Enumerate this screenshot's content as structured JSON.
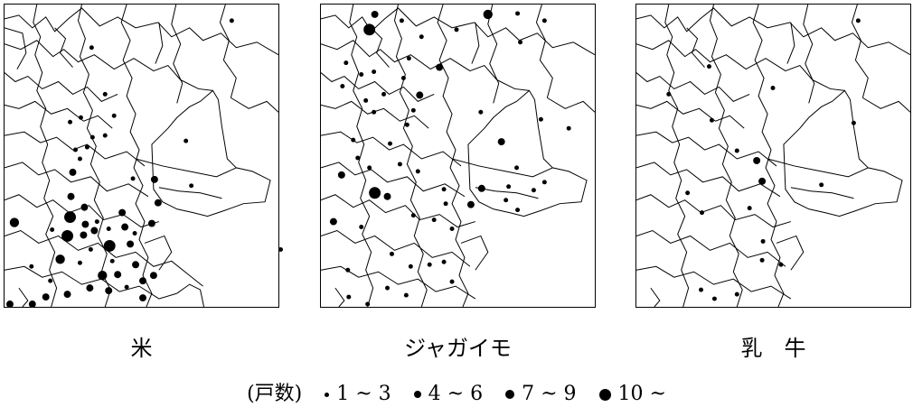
{
  "maps": [
    {
      "label": "米",
      "dots": [
        [
          257,
          22,
          1
        ],
        [
          101,
          52,
          1
        ],
        [
          116,
          104,
          1
        ],
        [
          126,
          128,
          1
        ],
        [
          89,
          130,
          1
        ],
        [
          77,
          135,
          1
        ],
        [
          102,
          152,
          1
        ],
        [
          116,
          150,
          1
        ],
        [
          96,
          163,
          1
        ],
        [
          83,
          166,
          1
        ],
        [
          88,
          176,
          1
        ],
        [
          80,
          191,
          2
        ],
        [
          147,
          198,
          1
        ],
        [
          171,
          199,
          2
        ],
        [
          212,
          206,
          1
        ],
        [
          206,
          156,
          1
        ],
        [
          78,
          218,
          2
        ],
        [
          93,
          230,
          2
        ],
        [
          175,
          225,
          2
        ],
        [
          77,
          241,
          4
        ],
        [
          94,
          249,
          2
        ],
        [
          107,
          246,
          1
        ],
        [
          135,
          236,
          2
        ],
        [
          15,
          247,
          3
        ],
        [
          57,
          255,
          1
        ],
        [
          74,
          262,
          4
        ],
        [
          92,
          261,
          2
        ],
        [
          104,
          256,
          2
        ],
        [
          120,
          254,
          1
        ],
        [
          138,
          252,
          2
        ],
        [
          168,
          248,
          2
        ],
        [
          149,
          259,
          1
        ],
        [
          121,
          273,
          4
        ],
        [
          144,
          271,
          2
        ],
        [
          100,
          277,
          1
        ],
        [
          66,
          288,
          3
        ],
        [
          34,
          296,
          1
        ],
        [
          88,
          292,
          1
        ],
        [
          124,
          290,
          1
        ],
        [
          150,
          294,
          2
        ],
        [
          113,
          306,
          3
        ],
        [
          130,
          305,
          2
        ],
        [
          170,
          306,
          2
        ],
        [
          158,
          312,
          2
        ],
        [
          55,
          312,
          1
        ],
        [
          74,
          327,
          2
        ],
        [
          99,
          320,
          2
        ],
        [
          120,
          323,
          2
        ],
        [
          140,
          319,
          1
        ],
        [
          50,
          330,
          2
        ],
        [
          158,
          331,
          2
        ],
        [
          10,
          338,
          2
        ],
        [
          35,
          338,
          2
        ]
      ]
    },
    {
      "label": "ジャガイモ",
      "dots": [
        [
          408,
          32,
          4
        ],
        [
          414,
          15,
          2
        ],
        [
          540,
          15,
          3
        ],
        [
          573,
          14,
          1
        ],
        [
          603,
          22,
          1
        ],
        [
          444,
          22,
          1
        ],
        [
          466,
          40,
          1
        ],
        [
          576,
          46,
          1
        ],
        [
          486,
          74,
          2
        ],
        [
          505,
          32,
          1
        ],
        [
          452,
          64,
          1
        ],
        [
          382,
          69,
          1
        ],
        [
          399,
          82,
          1
        ],
        [
          413,
          79,
          1
        ],
        [
          446,
          86,
          1
        ],
        [
          404,
          111,
          1
        ],
        [
          424,
          104,
          1
        ],
        [
          464,
          105,
          2
        ],
        [
          457,
          122,
          1
        ],
        [
          378,
          95,
          1
        ],
        [
          413,
          124,
          1
        ],
        [
          450,
          138,
          1
        ],
        [
          532,
          124,
          1
        ],
        [
          599,
          132,
          1
        ],
        [
          630,
          142,
          1
        ],
        [
          555,
          157,
          2
        ],
        [
          390,
          155,
          1
        ],
        [
          431,
          159,
          1
        ],
        [
          395,
          175,
          1
        ],
        [
          442,
          182,
          1
        ],
        [
          377,
          194,
          2
        ],
        [
          462,
          190,
          1
        ],
        [
          408,
          186,
          1
        ],
        [
          572,
          186,
          1
        ],
        [
          414,
          214,
          4
        ],
        [
          428,
          218,
          2
        ],
        [
          491,
          210,
          1
        ],
        [
          533,
          209,
          2
        ],
        [
          603,
          202,
          1
        ],
        [
          591,
          211,
          1
        ],
        [
          563,
          207,
          1
        ],
        [
          521,
          227,
          2
        ],
        [
          457,
          239,
          1
        ],
        [
          493,
          226,
          1
        ],
        [
          560,
          222,
          1
        ],
        [
          573,
          233,
          1
        ],
        [
          368,
          246,
          2
        ],
        [
          480,
          244,
          1
        ],
        [
          500,
          254,
          1
        ],
        [
          399,
          252,
          1
        ],
        [
          384,
          300,
          1
        ],
        [
          433,
          282,
          1
        ],
        [
          454,
          296,
          1
        ],
        [
          475,
          294,
          1
        ],
        [
          491,
          291,
          1
        ],
        [
          500,
          313,
          1
        ],
        [
          428,
          320,
          1
        ],
        [
          449,
          328,
          1
        ],
        [
          385,
          330,
          1
        ],
        [
          406,
          338,
          1
        ]
      ]
    },
    {
      "label": "乳　牛",
      "dots": [
        [
          950,
          22,
          1
        ],
        [
          784,
          73,
          1
        ],
        [
          855,
          97,
          1
        ],
        [
          739,
          104,
          1
        ],
        [
          945,
          136,
          1
        ],
        [
          787,
          133,
          1
        ],
        [
          815,
          167,
          1
        ],
        [
          837,
          178,
          2
        ],
        [
          843,
          201,
          2
        ],
        [
          760,
          214,
          1
        ],
        [
          909,
          205,
          1
        ],
        [
          829,
          231,
          1
        ],
        [
          776,
          236,
          1
        ],
        [
          844,
          268,
          1
        ],
        [
          843,
          289,
          1
        ],
        [
          864,
          294,
          1
        ],
        [
          775,
          322,
          1
        ],
        [
          790,
          332,
          1
        ],
        [
          815,
          327,
          1
        ]
      ]
    }
  ],
  "legend": {
    "prefix": "(戸数)",
    "items": [
      "1 ~ 3",
      "4 ~ 6",
      "7 ~ 9",
      "10 ~"
    ]
  }
}
